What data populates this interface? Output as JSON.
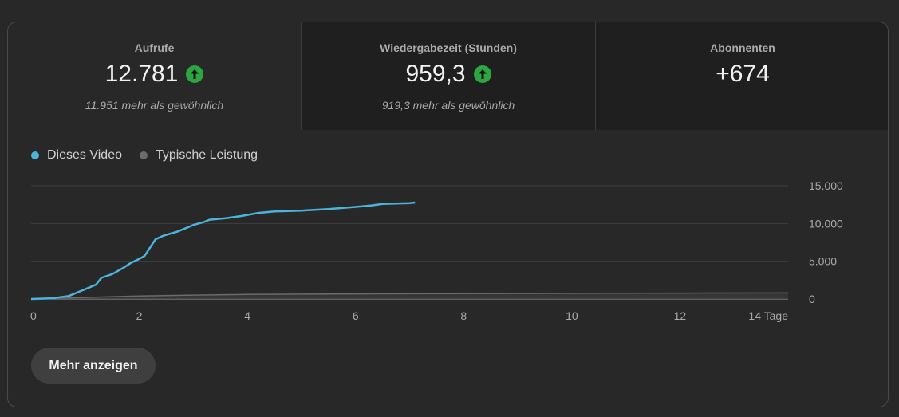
{
  "metrics": [
    {
      "title": "Aufrufe",
      "value": "12.781",
      "trend": "up",
      "sub": "11.951 mehr als gewöhnlich"
    },
    {
      "title": "Wiedergabezeit (Stunden)",
      "value": "959,3",
      "trend": "up",
      "sub": "919,3 mehr als gewöhnlich"
    },
    {
      "title": "Abonnenten",
      "value": "+674",
      "trend": "",
      "sub": ""
    }
  ],
  "legend": {
    "this_video": "Dieses Video",
    "typical": "Typische Leistung"
  },
  "colors": {
    "this_video": "#4cb4dc",
    "typical": "#6b6b6b",
    "up_badge": "#2ba640"
  },
  "more_button": "Mehr anzeigen",
  "chart_data": {
    "type": "line",
    "xlim": [
      0,
      14
    ],
    "ylim": [
      0,
      15000
    ],
    "x_ticks": [
      "0",
      "2",
      "4",
      "6",
      "8",
      "10",
      "12",
      "14 Tage"
    ],
    "x_tick_values": [
      0,
      2,
      4,
      6,
      8,
      10,
      12,
      14
    ],
    "y_ticks": [
      "0",
      "5.000",
      "10.000",
      "15.000"
    ],
    "y_tick_values": [
      0,
      5000,
      10000,
      15000
    ],
    "grid": true,
    "series": [
      {
        "name": "Dieses Video",
        "x": [
          0,
          0.4,
          0.7,
          1.0,
          1.2,
          1.3,
          1.5,
          1.7,
          1.85,
          2.0,
          2.1,
          2.2,
          2.3,
          2.45,
          2.7,
          2.9,
          3.0,
          3.2,
          3.3,
          3.6,
          3.9,
          4.2,
          4.5,
          5.0,
          5.5,
          6.0,
          6.3,
          6.5,
          7.0,
          7.1
        ],
        "y": [
          0,
          100,
          400,
          1300,
          1900,
          2800,
          3300,
          4100,
          4800,
          5300,
          5700,
          6800,
          7900,
          8400,
          8900,
          9500,
          9800,
          10200,
          10500,
          10700,
          11000,
          11400,
          11600,
          11700,
          11900,
          12200,
          12400,
          12600,
          12700,
          12781
        ]
      },
      {
        "name": "Typische Leistung",
        "x": [
          0,
          1,
          2,
          3,
          4,
          6,
          8,
          10,
          12,
          14
        ],
        "y": [
          0,
          200,
          400,
          520,
          600,
          680,
          720,
          750,
          780,
          800
        ]
      }
    ]
  }
}
